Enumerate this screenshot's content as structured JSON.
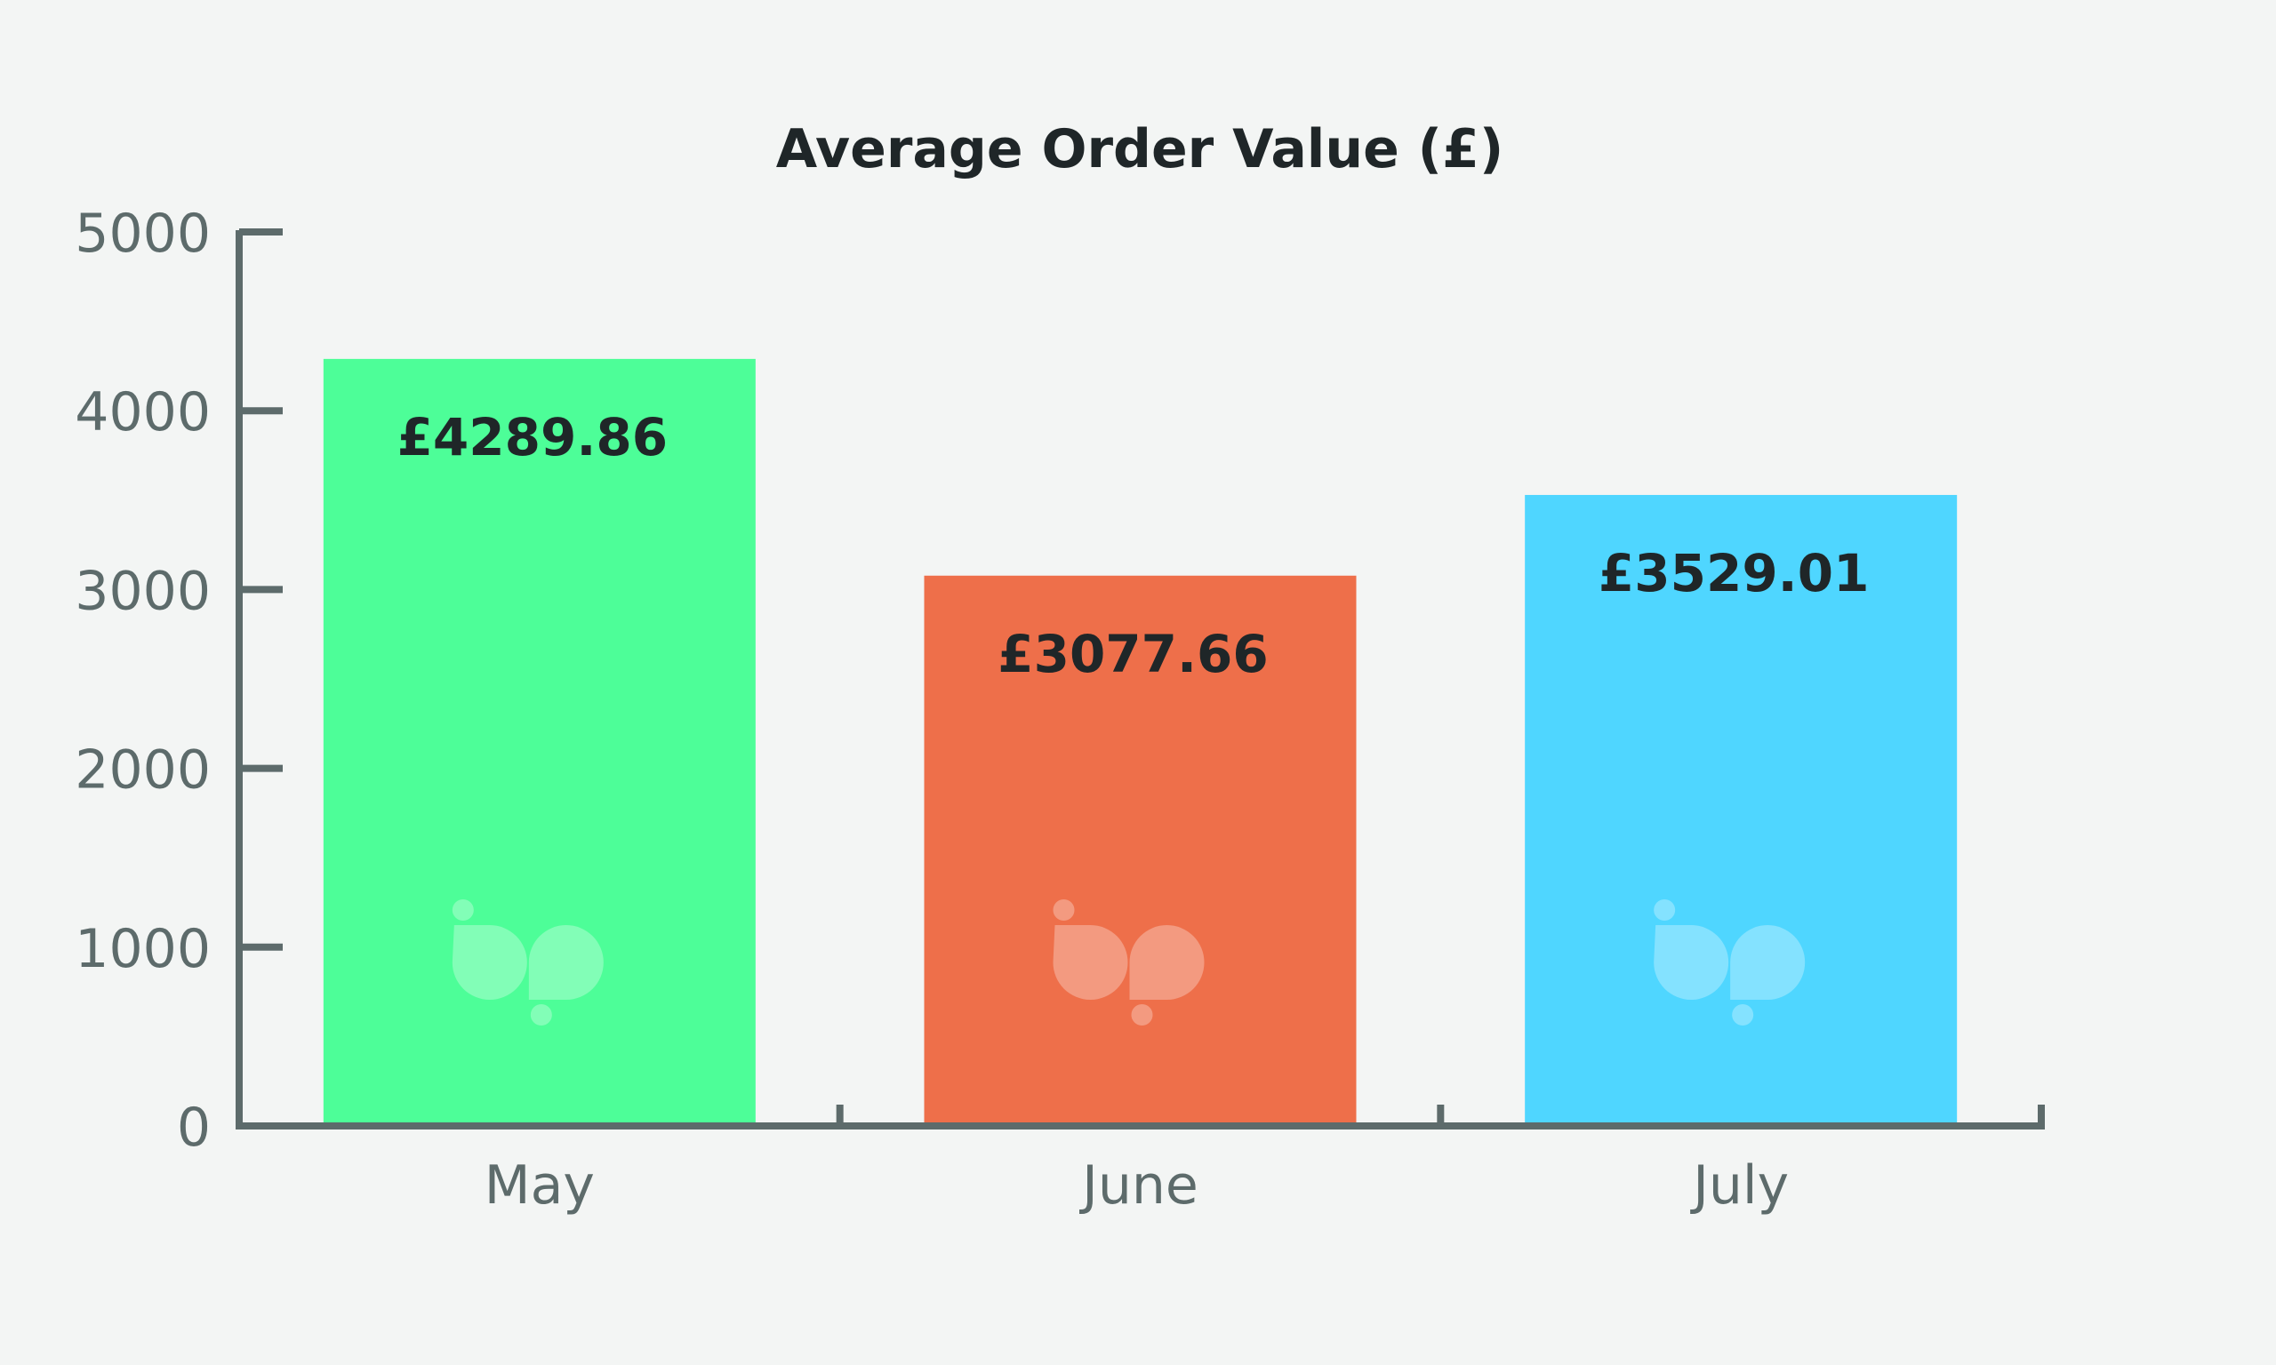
{
  "chart_data": {
    "type": "bar",
    "title": "Average Order Value (£)",
    "xlabel": "",
    "ylabel": "",
    "categories": [
      "May",
      "June",
      "July"
    ],
    "values": [
      4289.86,
      3077.66,
      3529.01
    ],
    "data_labels": [
      "£4289.86",
      "£3077.66",
      "£3529.01"
    ],
    "colors": [
      "#4dfe98",
      "#ee6f4a",
      "#4fd6ff"
    ],
    "ylim": [
      0,
      5000
    ],
    "yticks": [
      0,
      1000,
      2000,
      3000,
      4000,
      5000
    ],
    "ytick_labels": [
      "0",
      "1000",
      "2000",
      "3000",
      "4000",
      "5000"
    ],
    "grid": false,
    "legend": "none",
    "axis_color": "#5d6b6b",
    "background": "#f3f5f4"
  }
}
